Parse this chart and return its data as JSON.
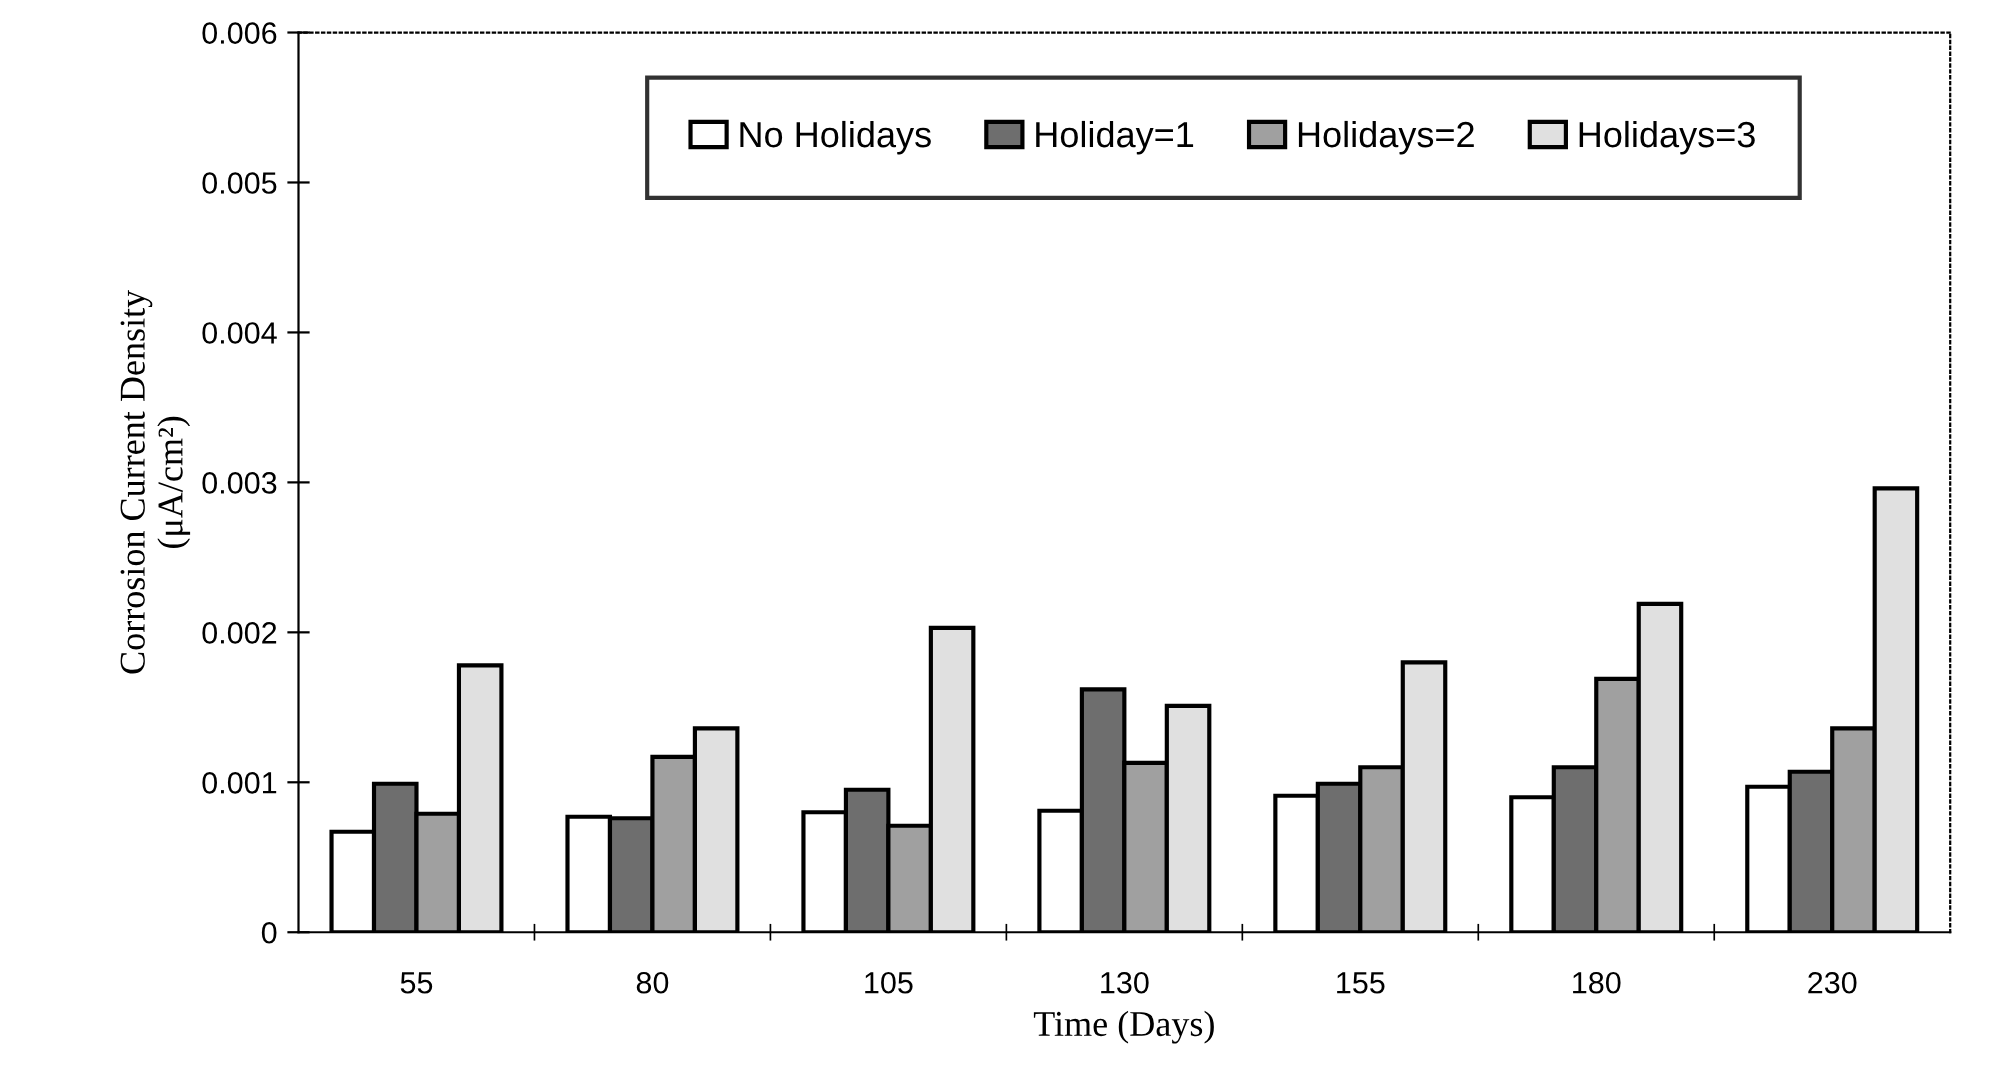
{
  "chart_data": {
    "type": "bar",
    "xlabel": "Time (Days)",
    "ylabel": "Corrosion Current Density\n(μA/cm²)",
    "categories": [
      "55",
      "80",
      "105",
      "130",
      "155",
      "180",
      "230"
    ],
    "series": [
      {
        "name": "No Holidays",
        "color": "#ffffff",
        "values": [
          0.00067,
          0.00077,
          0.0008,
          0.00081,
          0.00091,
          0.0009,
          0.00097
        ]
      },
      {
        "name": "Holiday=1",
        "color": "#6e6e6e",
        "values": [
          0.00099,
          0.00076,
          0.00095,
          0.00162,
          0.00099,
          0.0011,
          0.00107
        ]
      },
      {
        "name": "Holidays=2",
        "color": "#a0a0a0",
        "values": [
          0.00079,
          0.00117,
          0.00071,
          0.00113,
          0.0011,
          0.00169,
          0.00136
        ]
      },
      {
        "name": "Holidays=3",
        "color": "#e0e0e0",
        "values": [
          0.00178,
          0.00136,
          0.00203,
          0.00151,
          0.0018,
          0.00219,
          0.00296
        ]
      }
    ],
    "ylim": [
      0,
      0.006
    ],
    "yticks": [
      0,
      0.001,
      0.002,
      0.003,
      0.004,
      0.005,
      0.006
    ],
    "grid": false,
    "legend": "top"
  }
}
